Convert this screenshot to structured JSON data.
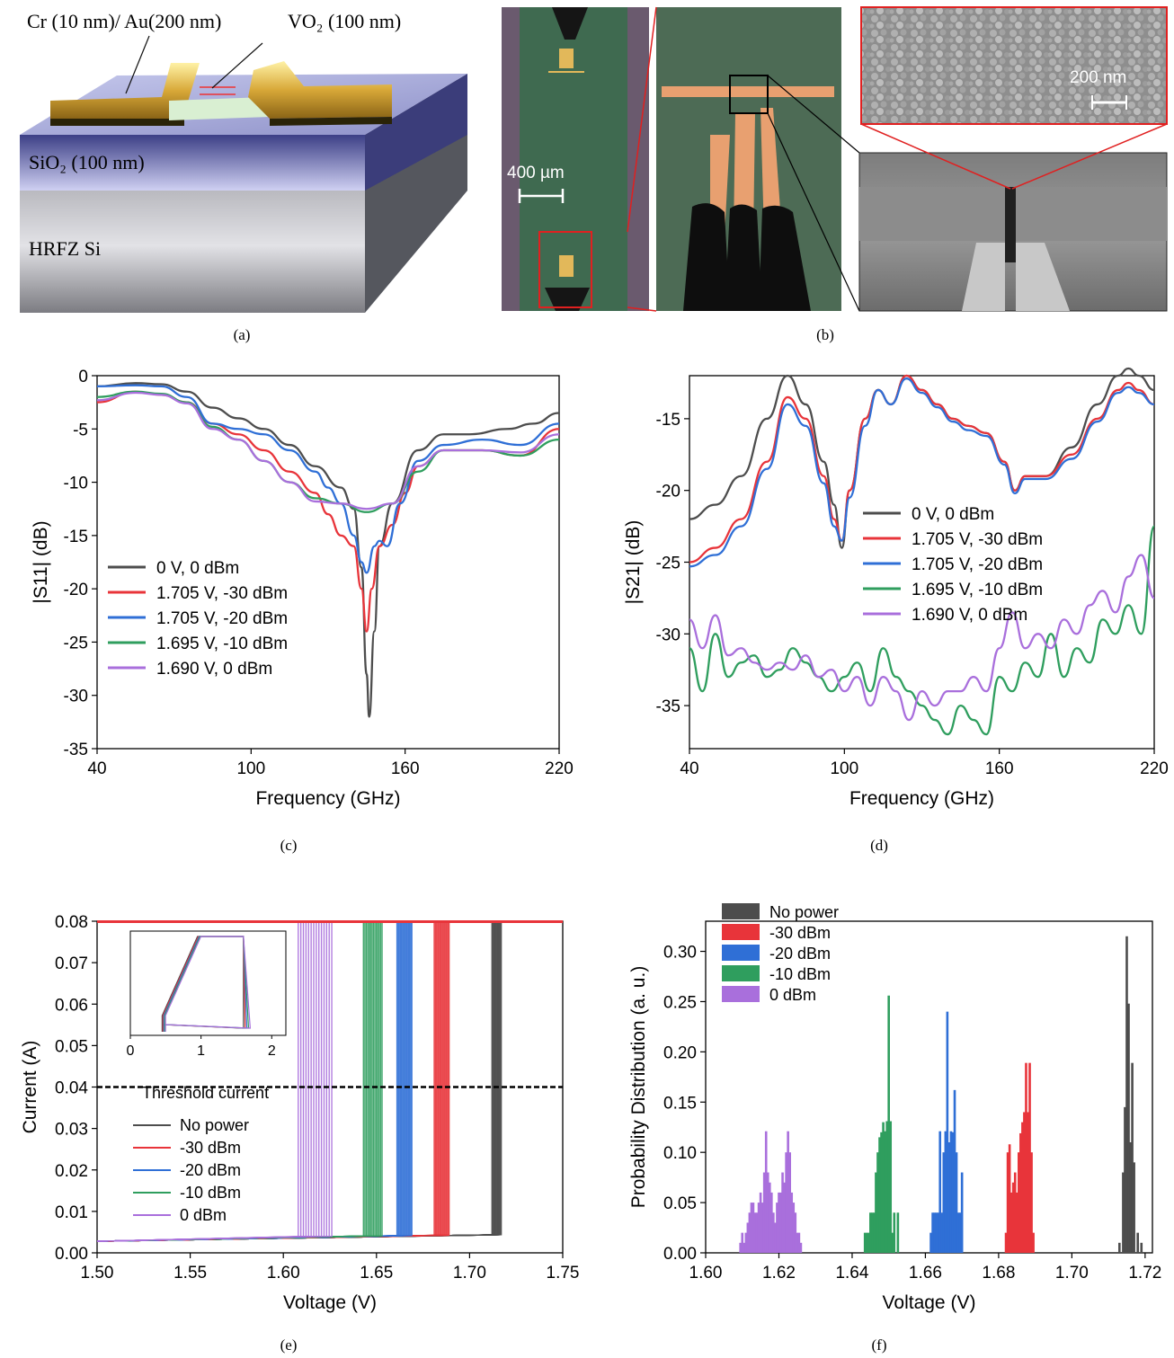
{
  "captions": {
    "a": "(a)",
    "b": "(b)",
    "c": "(c)",
    "d": "(d)",
    "e": "(e)",
    "f": "(f)"
  },
  "panel_a": {
    "label_cr_au": "Cr (10 nm)/ Au(200 nm)",
    "label_vo2": "VO₂ (100 nm)",
    "label_sio2": "SiO₂ (100 nm)",
    "label_si": "HRFZ Si"
  },
  "panel_b": {
    "scale_400": "400 µm",
    "scale_200": "200 nm"
  },
  "colors": {
    "s0": "#4d4d4d",
    "s30": "#e8343a",
    "s20": "#2f6fd6",
    "s10": "#2f9e5e",
    "s0dbm": "#a96fdc"
  },
  "chart_data": [
    {
      "id": "c",
      "type": "line",
      "xlabel": "Frequency (GHz)",
      "ylabel": "|S11| (dB)",
      "xlim": [
        40,
        220
      ],
      "ylim": [
        -35,
        0
      ],
      "xticks": [
        40,
        100,
        160,
        220
      ],
      "yticks": [
        0,
        -5,
        -10,
        -15,
        -20,
        -25,
        -30,
        -35
      ],
      "legend_position": "center-left",
      "series": [
        {
          "name": "0 V, 0 dBm",
          "color": "#4d4d4d",
          "x": [
            40,
            55,
            65,
            75,
            85,
            95,
            105,
            115,
            125,
            135,
            140,
            143,
            145,
            146,
            148,
            150,
            155,
            165,
            175,
            185,
            200,
            210,
            220
          ],
          "y": [
            -1,
            -0.7,
            -0.8,
            -1.5,
            -3,
            -4,
            -5,
            -6.5,
            -8.5,
            -10.5,
            -12.5,
            -18,
            -28,
            -32,
            -24,
            -16,
            -12,
            -7,
            -5.5,
            -5.5,
            -5,
            -4.5,
            -3.5
          ]
        },
        {
          "name": "1.705 V, -30 dBm",
          "color": "#e8343a",
          "x": [
            40,
            55,
            65,
            75,
            85,
            95,
            105,
            115,
            125,
            130,
            135,
            140,
            143,
            145,
            147,
            150,
            155,
            160,
            165,
            175,
            190,
            205,
            220
          ],
          "y": [
            -2.5,
            -1.5,
            -1.8,
            -2.5,
            -4.5,
            -5.5,
            -7,
            -9,
            -11,
            -13,
            -15,
            -16,
            -20,
            -24,
            -20,
            -16,
            -14,
            -11,
            -8.5,
            -7,
            -7,
            -7.5,
            -5
          ]
        },
        {
          "name": "1.705 V, -20 dBm",
          "color": "#2f6fd6",
          "x": [
            40,
            55,
            65,
            75,
            85,
            95,
            105,
            115,
            125,
            130,
            135,
            140,
            143,
            145,
            148,
            150,
            153,
            158,
            165,
            175,
            190,
            205,
            220
          ],
          "y": [
            -1,
            -0.9,
            -1,
            -2,
            -4.5,
            -5,
            -5.5,
            -7,
            -9,
            -10.5,
            -12,
            -15,
            -17.5,
            -18.5,
            -16,
            -15.5,
            -16,
            -12,
            -8,
            -6.5,
            -6,
            -6.5,
            -4.5
          ]
        },
        {
          "name": "1.695 V, -10 dBm",
          "color": "#2f9e5e",
          "x": [
            40,
            55,
            65,
            75,
            85,
            95,
            105,
            115,
            125,
            135,
            145,
            155,
            165,
            175,
            190,
            205,
            220
          ],
          "y": [
            -2,
            -1.5,
            -1.7,
            -2.5,
            -4.8,
            -6,
            -8,
            -10,
            -11.5,
            -12,
            -12.8,
            -12,
            -9,
            -7,
            -7,
            -7.5,
            -6
          ]
        },
        {
          "name": "1.690 V, 0 dBm",
          "color": "#a96fdc",
          "x": [
            40,
            55,
            65,
            75,
            85,
            95,
            105,
            115,
            125,
            135,
            145,
            155,
            165,
            175,
            190,
            205,
            220
          ],
          "y": [
            -2.3,
            -1.6,
            -1.8,
            -2.6,
            -5,
            -6,
            -8,
            -10,
            -11.8,
            -12,
            -12.5,
            -12,
            -8.5,
            -7,
            -7,
            -7.2,
            -5.5
          ]
        }
      ]
    },
    {
      "id": "d",
      "type": "line",
      "xlabel": "Frequency (GHz)",
      "ylabel": "|S21| (dB)",
      "xlim": [
        40,
        220
      ],
      "ylim": [
        -38,
        -12
      ],
      "xticks": [
        40,
        100,
        160,
        220
      ],
      "yticks": [
        -15,
        -20,
        -25,
        -30,
        -35
      ],
      "legend_position": "center",
      "series": [
        {
          "name": "0 V, 0 dBm",
          "color": "#4d4d4d",
          "x": [
            40,
            50,
            60,
            70,
            78,
            85,
            92,
            96,
            99,
            102,
            108,
            113,
            118,
            124,
            130,
            136,
            142,
            148,
            155,
            162,
            166,
            170,
            178,
            188,
            198,
            206,
            210,
            214,
            220
          ],
          "y": [
            -22,
            -21,
            -19,
            -15,
            -12,
            -14,
            -18,
            -21,
            -24,
            -20,
            -15,
            -13,
            -14,
            -12,
            -13,
            -14,
            -15,
            -15.5,
            -16,
            -18,
            -20,
            -19,
            -19,
            -17,
            -14,
            -12,
            -11.5,
            -12,
            -13
          ]
        },
        {
          "name": "1.705 V, -30 dBm",
          "color": "#e8343a",
          "x": [
            40,
            50,
            60,
            70,
            78,
            85,
            92,
            96,
            99,
            102,
            108,
            113,
            118,
            124,
            130,
            136,
            142,
            148,
            155,
            162,
            166,
            170,
            178,
            188,
            198,
            206,
            210,
            214,
            220
          ],
          "y": [
            -25,
            -24,
            -22,
            -18,
            -13.5,
            -15,
            -19,
            -22,
            -23.5,
            -20,
            -15,
            -13,
            -14,
            -12,
            -13,
            -14,
            -15,
            -15.5,
            -16,
            -18,
            -20,
            -19,
            -19,
            -17.5,
            -15,
            -13,
            -12.5,
            -13,
            -14
          ]
        },
        {
          "name": "1.705 V, -20 dBm",
          "color": "#2f6fd6",
          "x": [
            40,
            50,
            60,
            70,
            78,
            85,
            92,
            96,
            99,
            102,
            108,
            113,
            118,
            124,
            130,
            136,
            142,
            148,
            155,
            162,
            166,
            170,
            178,
            188,
            198,
            206,
            210,
            214,
            220
          ],
          "y": [
            -25.3,
            -24.5,
            -22.5,
            -18.5,
            -14,
            -15.5,
            -19.5,
            -22.5,
            -23.5,
            -20.5,
            -15.5,
            -13,
            -14,
            -12.2,
            -13.2,
            -14.2,
            -15.2,
            -15.8,
            -16.2,
            -18.2,
            -20.2,
            -19.2,
            -19.2,
            -17.8,
            -15.2,
            -13.2,
            -12.8,
            -13.2,
            -14
          ]
        },
        {
          "name": "1.695 V, -10 dBm",
          "color": "#2f9e5e",
          "x": [
            40,
            45,
            50,
            55,
            60,
            65,
            70,
            75,
            80,
            85,
            90,
            95,
            100,
            105,
            110,
            115,
            120,
            125,
            130,
            135,
            140,
            145,
            150,
            155,
            160,
            165,
            170,
            175,
            180,
            185,
            190,
            195,
            200,
            205,
            210,
            215,
            220
          ],
          "y": [
            -31,
            -34,
            -30,
            -33,
            -32,
            -31.5,
            -33,
            -32.5,
            -31,
            -32,
            -33,
            -34,
            -33,
            -32,
            -34,
            -31,
            -33,
            -34,
            -35,
            -36,
            -37,
            -35,
            -36,
            -37,
            -33,
            -34,
            -32,
            -33,
            -30,
            -33,
            -31,
            -32,
            -29,
            -30,
            -28,
            -30,
            -22.5
          ]
        },
        {
          "name": "1.690 V, 0 dBm",
          "color": "#a96fdc",
          "x": [
            40,
            45,
            50,
            55,
            60,
            65,
            70,
            75,
            80,
            85,
            90,
            95,
            100,
            105,
            110,
            115,
            120,
            125,
            130,
            135,
            140,
            145,
            150,
            155,
            160,
            165,
            170,
            175,
            180,
            185,
            190,
            195,
            200,
            205,
            210,
            215,
            220
          ],
          "y": [
            -29,
            -31,
            -28.7,
            -31.5,
            -31,
            -32,
            -32.5,
            -32,
            -32.5,
            -31.5,
            -33,
            -32.5,
            -34,
            -33,
            -35,
            -33,
            -34,
            -36,
            -34,
            -35,
            -34,
            -34,
            -33,
            -34,
            -31,
            -28.5,
            -31,
            -30,
            -31,
            -29,
            -30,
            -28,
            -27,
            -28.5,
            -26,
            -24.5,
            -27.5
          ]
        }
      ]
    },
    {
      "id": "e",
      "type": "line",
      "xlabel": "Voltage (V)",
      "ylabel": "Current (A)",
      "xlim": [
        1.5,
        1.75
      ],
      "ylim": [
        0,
        0.08
      ],
      "xticks": [
        1.5,
        1.55,
        1.6,
        1.65,
        1.7,
        1.75
      ],
      "yticks": [
        0,
        0.01,
        0.02,
        0.03,
        0.04,
        0.05,
        0.06,
        0.07,
        0.08
      ],
      "threshold": {
        "value": 0.04,
        "label": "Threshold current"
      },
      "legend_position": "bottom-left",
      "series": [
        {
          "name": "No power",
          "color": "#4d4d4d",
          "switch_range": [
            1.712,
            1.717
          ]
        },
        {
          "name": "-30 dBm",
          "color": "#e8343a",
          "switch_range": [
            1.681,
            1.689
          ]
        },
        {
          "name": "-20 dBm",
          "color": "#2f6fd6",
          "switch_range": [
            1.661,
            1.669
          ]
        },
        {
          "name": "-10 dBm",
          "color": "#2f9e5e",
          "switch_range": [
            1.643,
            1.653
          ]
        },
        {
          "name": "0 dBm",
          "color": "#a96fdc",
          "switch_range": [
            1.608,
            1.626
          ]
        }
      ],
      "inset": {
        "xlim": [
          0,
          2.2
        ],
        "xticks": [
          0,
          1,
          2
        ]
      }
    },
    {
      "id": "f",
      "type": "bar",
      "xlabel": "Voltage (V)",
      "ylabel": "Probability Distribution (a. u.)",
      "xlim": [
        1.6,
        1.722
      ],
      "ylim": [
        0,
        0.33
      ],
      "xticks": [
        1.6,
        1.62,
        1.64,
        1.66,
        1.68,
        1.7,
        1.72
      ],
      "yticks": [
        0,
        0.05,
        0.1,
        0.15,
        0.2,
        0.25,
        0.3
      ],
      "legend_position": "top-left",
      "series": [
        {
          "name": "No power",
          "color": "#4d4d4d",
          "x": [
            1.713,
            1.714,
            1.7145,
            1.715,
            1.7155,
            1.716,
            1.7165,
            1.717,
            1.718,
            1.719
          ],
          "y": [
            0.01,
            0.08,
            0.145,
            0.315,
            0.248,
            0.11,
            0.189,
            0.09,
            0.02,
            0.01
          ]
        },
        {
          "name": "-30 dBm",
          "color": "#e8343a",
          "x": [
            1.682,
            1.6825,
            1.683,
            1.6835,
            1.684,
            1.6845,
            1.685,
            1.6855,
            1.686,
            1.6865,
            1.687,
            1.6875,
            1.688,
            1.6885,
            1.689,
            1.6895
          ],
          "y": [
            0.02,
            0.1,
            0.108,
            0.06,
            0.07,
            0.08,
            0.06,
            0.1,
            0.119,
            0.13,
            0.14,
            0.189,
            0.14,
            0.189,
            0.1,
            0.02
          ]
        },
        {
          "name": "-20 dBm",
          "color": "#2f6fd6",
          "x": [
            1.6615,
            1.662,
            1.6625,
            1.663,
            1.6635,
            1.664,
            1.6645,
            1.665,
            1.6655,
            1.666,
            1.6665,
            1.667,
            1.6675,
            1.668,
            1.6685,
            1.669,
            1.6695,
            1.67
          ],
          "y": [
            0.02,
            0.04,
            0.04,
            0.04,
            0.04,
            0.121,
            0.04,
            0.1,
            0.121,
            0.24,
            0.11,
            0.121,
            0.12,
            0.162,
            0.1,
            0.04,
            0.04,
            0.08
          ]
        },
        {
          "name": "-10 dBm",
          "color": "#2f9e5e",
          "x": [
            1.6435,
            1.644,
            1.6445,
            1.645,
            1.6455,
            1.646,
            1.6465,
            1.647,
            1.6475,
            1.648,
            1.6485,
            1.649,
            1.6495,
            1.65,
            1.6505,
            1.651,
            1.6515,
            1.6525
          ],
          "y": [
            0.02,
            0.02,
            0.02,
            0.04,
            0.04,
            0.04,
            0.08,
            0.1,
            0.115,
            0.12,
            0.13,
            0.121,
            0.131,
            0.256,
            0.131,
            0.02,
            0.04,
            0.04
          ]
        },
        {
          "name": "0 dBm",
          "color": "#a96fdc",
          "x": [
            1.6095,
            1.61,
            1.6105,
            1.611,
            1.6115,
            1.612,
            1.6125,
            1.613,
            1.6135,
            1.614,
            1.6145,
            1.615,
            1.6155,
            1.616,
            1.6165,
            1.617,
            1.6175,
            1.618,
            1.6185,
            1.619,
            1.6195,
            1.62,
            1.6205,
            1.621,
            1.6215,
            1.622,
            1.6225,
            1.623,
            1.6235,
            1.624,
            1.6245,
            1.625,
            1.6255,
            1.626
          ],
          "y": [
            0.01,
            0.02,
            0.01,
            0.02,
            0.03,
            0.04,
            0.05,
            0.05,
            0.04,
            0.04,
            0.05,
            0.06,
            0.05,
            0.08,
            0.121,
            0.08,
            0.07,
            0.06,
            0.04,
            0.03,
            0.05,
            0.06,
            0.06,
            0.08,
            0.07,
            0.1,
            0.121,
            0.1,
            0.06,
            0.05,
            0.04,
            0.02,
            0.02,
            0.01
          ]
        }
      ]
    }
  ]
}
